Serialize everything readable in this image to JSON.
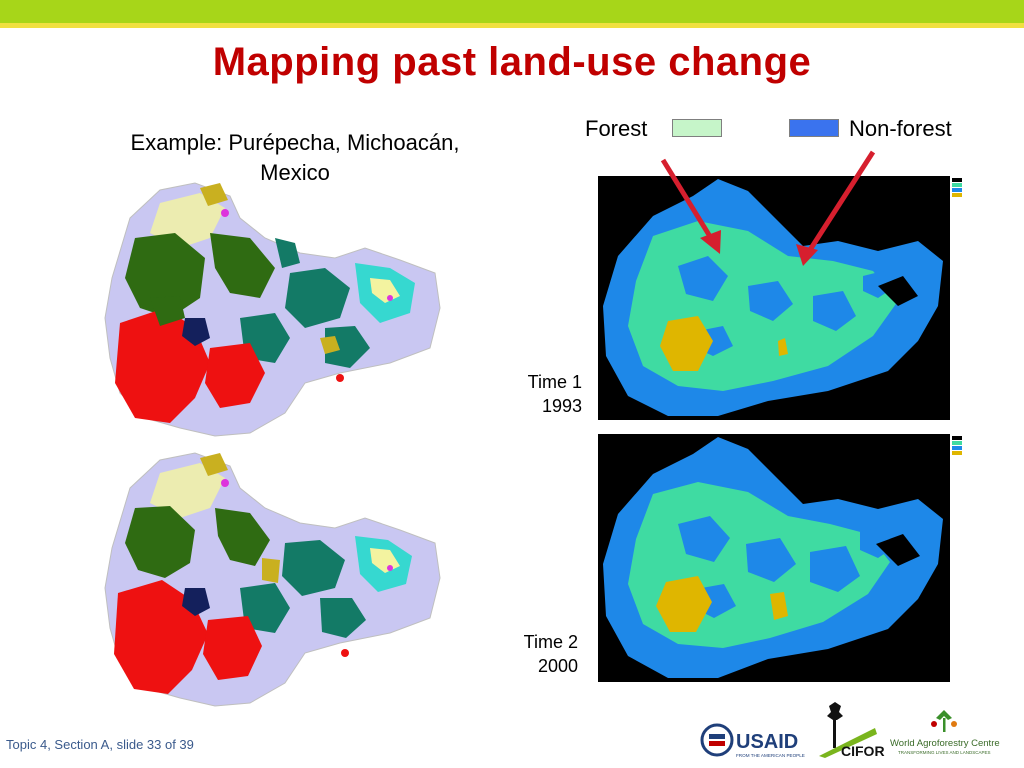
{
  "slide": {
    "title": "Mapping past land-use change",
    "subtitle_line1": "Example: Purépecha, Michoacán,",
    "subtitle_line2": "Mexico",
    "footer": "Topic 4, Section A, slide 33 of 39"
  },
  "legend": {
    "forest_label": "Forest",
    "forest_color": "#c6f5c9",
    "nonforest_label": "Non-forest",
    "nonforest_color": "#3a73ee"
  },
  "time_panels": [
    {
      "label": "Time 1",
      "year": "1993"
    },
    {
      "label": "Time 2",
      "year": "2000"
    }
  ],
  "logos": {
    "usaid_name": "USAID",
    "usaid_tagline": "FROM THE AMERICAN PEOPLE",
    "cifor_name": "CIFOR",
    "icraf_name": "World Agroforestry Centre",
    "icraf_tagline": "TRANSFORMING LIVES AND LANDSCAPES"
  },
  "colors": {
    "bar_green": "#a7d619",
    "bar_yellow": "#f0e040",
    "title_red": "#c00000",
    "map_black": "#000000",
    "map_forest": "#3fdba2",
    "map_nonforest": "#1e88e8",
    "map_other": "#dfb600",
    "arrow_red": "#d61f2e"
  }
}
